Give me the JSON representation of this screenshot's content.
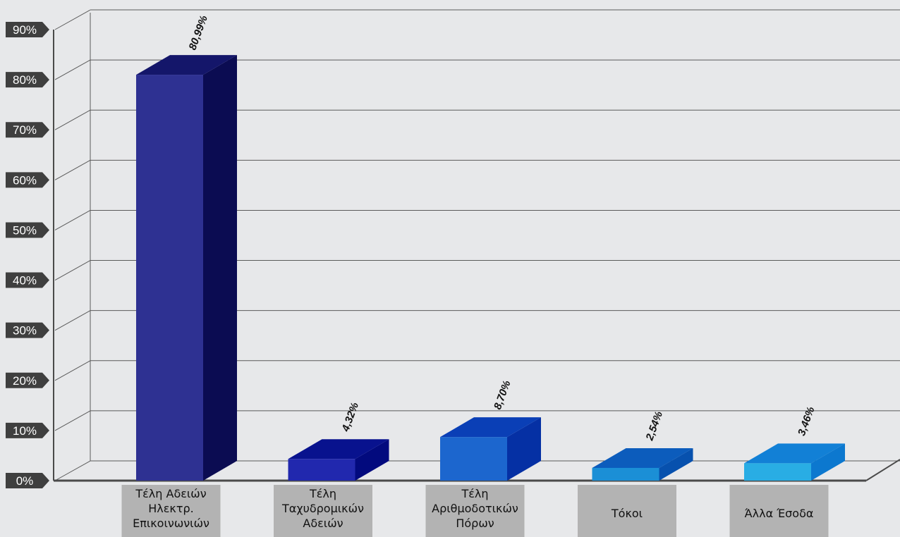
{
  "chart_data": {
    "type": "bar",
    "title": "",
    "xlabel": "",
    "ylabel": "",
    "categories": [
      [
        "Τέλη Αδειών",
        "Ηλεκτρ.",
        "Επικοινωνιών"
      ],
      [
        "Τέλη",
        "Ταχυδρομικών",
        "Αδειών"
      ],
      [
        "Τέλη",
        "Αριθμοδοτικών",
        "Πόρων"
      ],
      [
        "Τόκοι"
      ],
      [
        "Άλλα Έσοδα"
      ]
    ],
    "values": [
      80.99,
      4.32,
      8.7,
      2.54,
      3.46
    ],
    "value_labels": [
      "80,99%",
      "4,32%",
      "8,70%",
      "2,54%",
      "3,46%"
    ],
    "ylim": [
      0,
      90
    ],
    "yticks": [
      0,
      10,
      20,
      30,
      40,
      50,
      60,
      70,
      80,
      90
    ],
    "ytick_labels": [
      "0%",
      "10%",
      "20%",
      "30%",
      "40%",
      "50%",
      "60%",
      "70%",
      "80%",
      "90%"
    ],
    "grid": true,
    "style": "3d",
    "colors": [
      {
        "front": "#2e3192",
        "side": "#0b0c52",
        "top": "#14166a"
      },
      {
        "front": "#2128ae",
        "side": "#020a7e",
        "top": "#08128e"
      },
      {
        "front": "#1c66ce",
        "side": "#0530a4",
        "top": "#0a3fb6"
      },
      {
        "front": "#1b8fd6",
        "side": "#0751ae",
        "top": "#0c5cbc"
      },
      {
        "front": "#29ade4",
        "side": "#0c78cf",
        "top": "#1280d6"
      }
    ],
    "label_box_color": "#b3b3b3",
    "axis_color": "#4a4a4a",
    "grid_color": "#5a5a5a"
  }
}
